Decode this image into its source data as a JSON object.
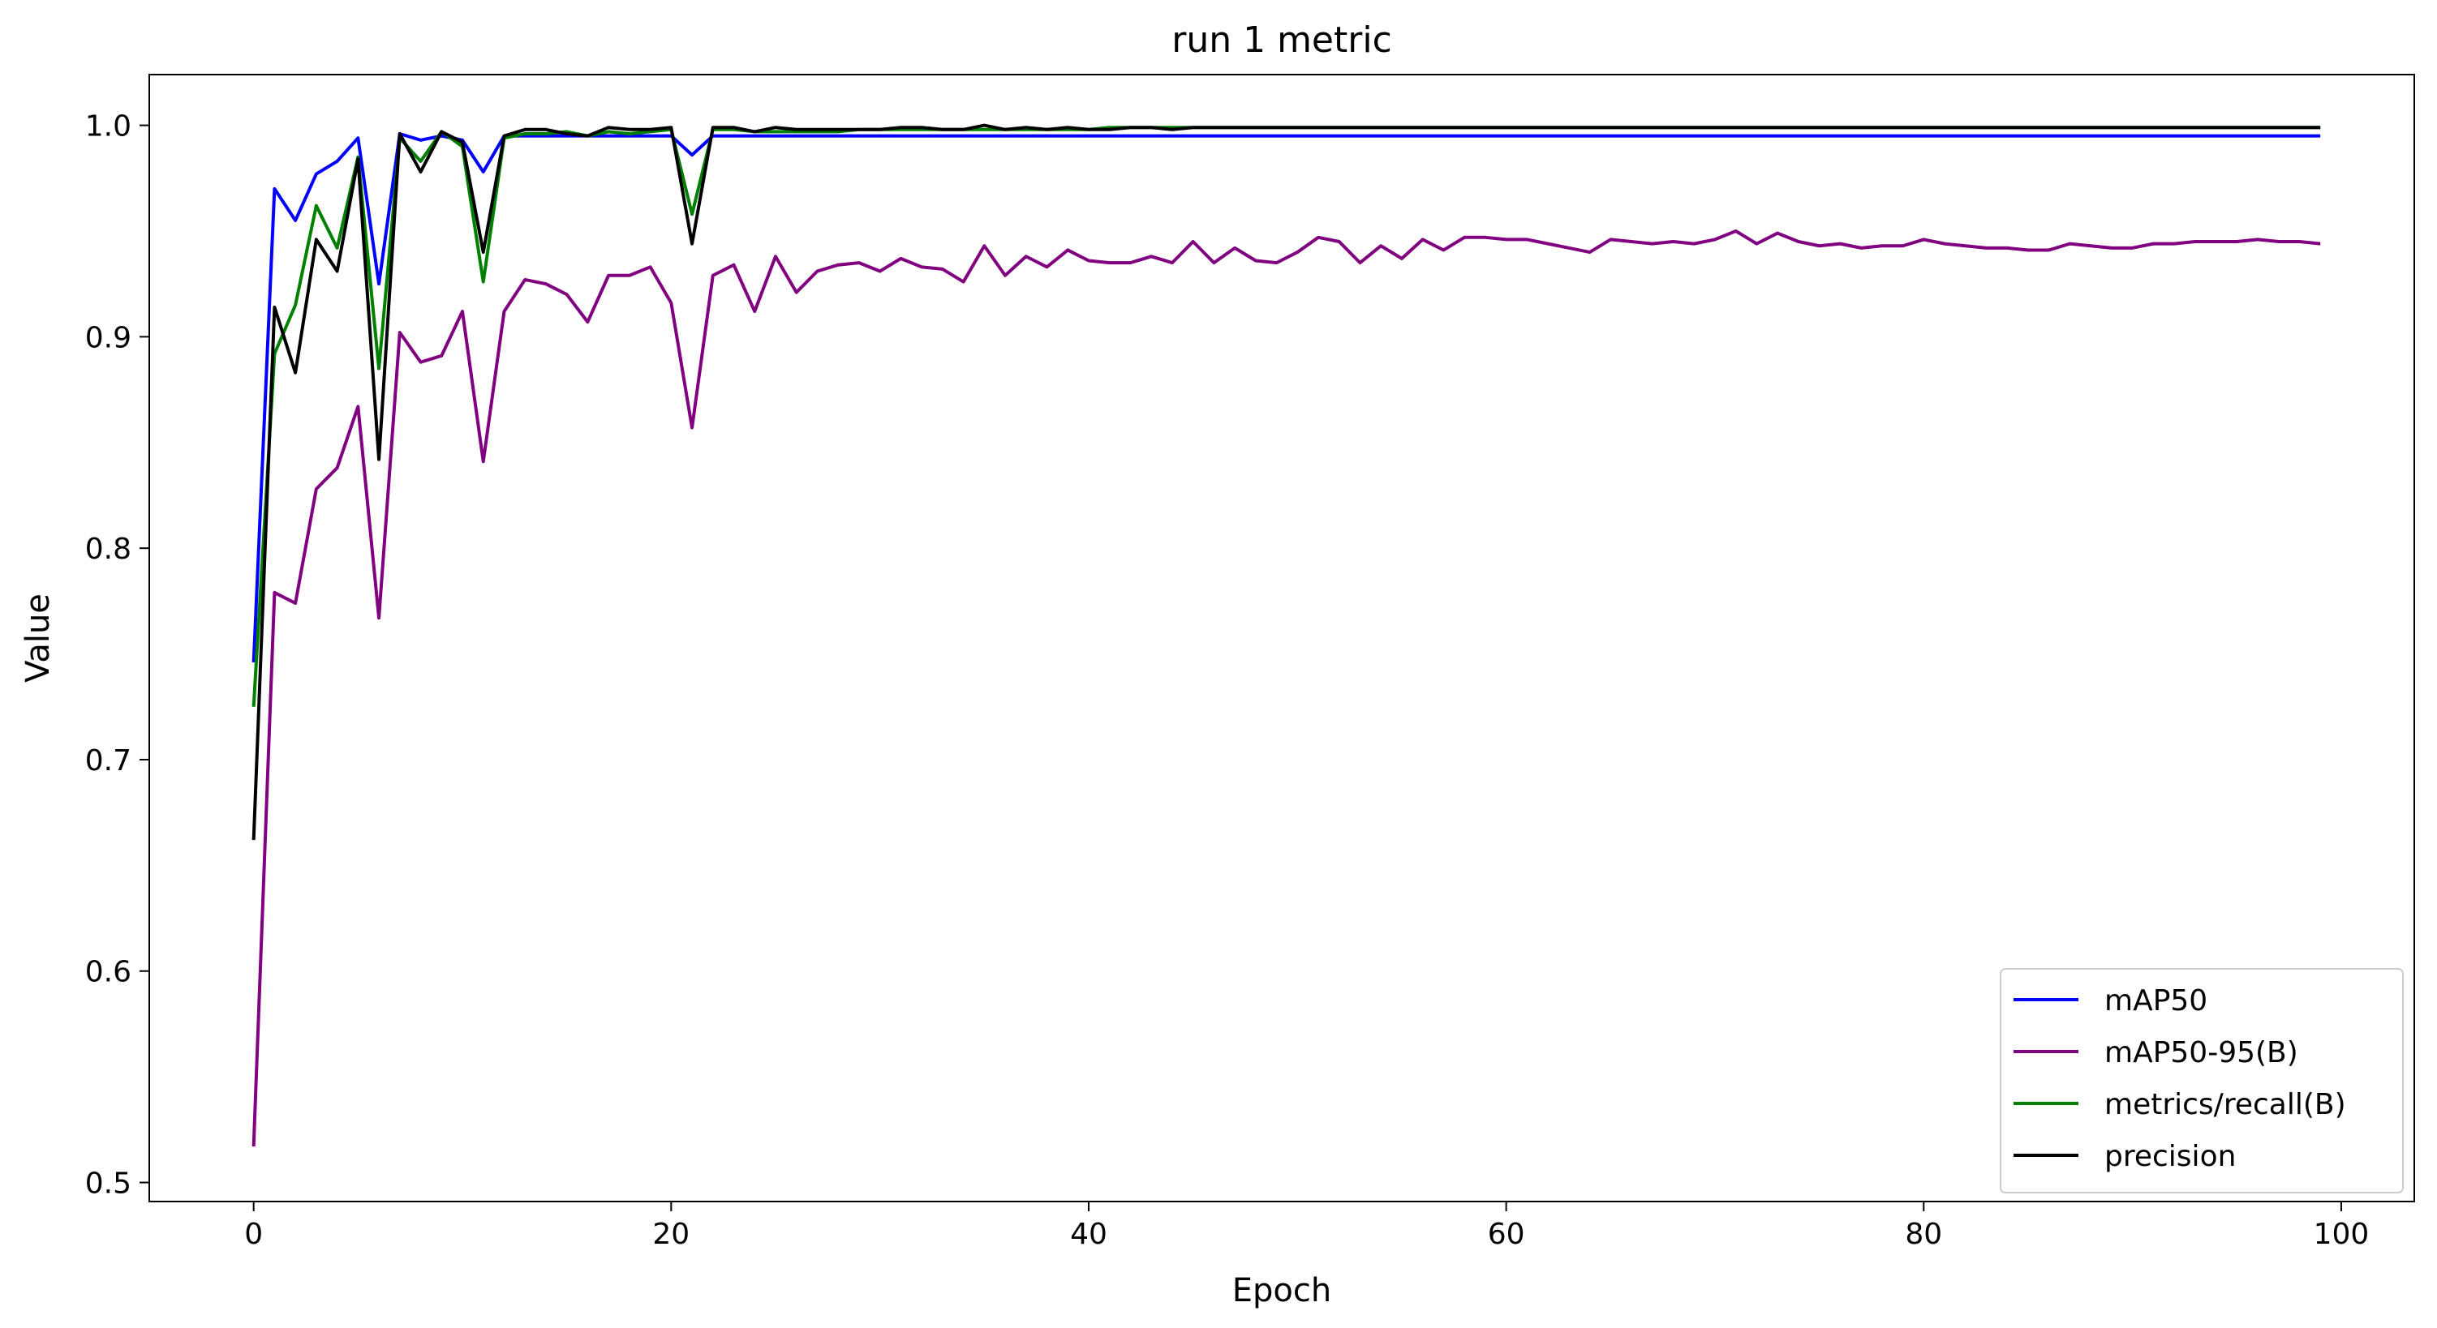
{
  "chart_data": {
    "type": "line",
    "title": "run 1 metric",
    "xlabel": "Epoch",
    "ylabel": "Value",
    "xlim": [
      -5,
      103.5
    ],
    "ylim": [
      0.491,
      1.024
    ],
    "xticks": [
      0,
      20,
      40,
      60,
      80,
      100
    ],
    "yticks": [
      0.5,
      0.6,
      0.7,
      0.8,
      0.9,
      1.0
    ],
    "xtick_labels": [
      "0",
      "20",
      "40",
      "60",
      "80",
      "100"
    ],
    "ytick_labels": [
      "0.5",
      "0.6",
      "0.7",
      "0.8",
      "0.9",
      "1.0"
    ],
    "grid": false,
    "legend_position": "lower-right",
    "series": [
      {
        "name": "mAP50",
        "color": "#0000ff",
        "values": [
          0.746,
          0.97,
          0.955,
          0.977,
          0.983,
          0.994,
          0.925,
          0.996,
          0.993,
          0.995,
          0.993,
          0.978,
          0.995,
          0.995,
          0.995,
          0.995,
          0.995,
          0.995,
          0.995,
          0.995,
          0.995,
          0.986,
          0.995,
          0.995,
          0.995,
          0.995,
          0.995,
          0.995,
          0.995,
          0.995,
          0.995,
          0.995,
          0.995,
          0.995,
          0.995,
          0.995,
          0.995,
          0.995,
          0.995,
          0.995,
          0.995,
          0.995,
          0.995,
          0.995,
          0.995,
          0.995,
          0.995,
          0.995,
          0.995,
          0.995,
          0.995,
          0.995,
          0.995,
          0.995,
          0.995,
          0.995,
          0.995,
          0.995,
          0.995,
          0.995,
          0.995,
          0.995,
          0.995,
          0.995,
          0.995,
          0.995,
          0.995,
          0.995,
          0.995,
          0.995,
          0.995,
          0.995,
          0.995,
          0.995,
          0.995,
          0.995,
          0.995,
          0.995,
          0.995,
          0.995,
          0.995,
          0.995,
          0.995,
          0.995,
          0.995,
          0.995,
          0.995,
          0.995,
          0.995,
          0.995,
          0.995,
          0.995,
          0.995,
          0.995,
          0.995,
          0.995,
          0.995,
          0.995,
          0.995,
          0.995
        ]
      },
      {
        "name": "mAP50-95(B)",
        "color": "#800080",
        "values": [
          0.517,
          0.779,
          0.774,
          0.828,
          0.838,
          0.867,
          0.767,
          0.902,
          0.888,
          0.891,
          0.912,
          0.841,
          0.912,
          0.927,
          0.925,
          0.92,
          0.907,
          0.929,
          0.929,
          0.933,
          0.916,
          0.857,
          0.929,
          0.934,
          0.912,
          0.938,
          0.921,
          0.931,
          0.934,
          0.935,
          0.931,
          0.937,
          0.933,
          0.932,
          0.926,
          0.943,
          0.929,
          0.938,
          0.933,
          0.941,
          0.936,
          0.935,
          0.935,
          0.938,
          0.935,
          0.945,
          0.935,
          0.942,
          0.936,
          0.935,
          0.94,
          0.947,
          0.945,
          0.935,
          0.943,
          0.937,
          0.946,
          0.941,
          0.947,
          0.947,
          0.946,
          0.946,
          0.944,
          0.942,
          0.94,
          0.946,
          0.945,
          0.944,
          0.945,
          0.944,
          0.946,
          0.95,
          0.944,
          0.949,
          0.945,
          0.943,
          0.944,
          0.942,
          0.943,
          0.943,
          0.946,
          0.944,
          0.943,
          0.942,
          0.942,
          0.941,
          0.941,
          0.944,
          0.943,
          0.942,
          0.942,
          0.944,
          0.944,
          0.945,
          0.945,
          0.945,
          0.946,
          0.945,
          0.945,
          0.944
        ]
      },
      {
        "name": "metrics/recall(B)",
        "color": "#008000",
        "values": [
          0.725,
          0.892,
          0.915,
          0.962,
          0.942,
          0.985,
          0.885,
          0.994,
          0.983,
          0.997,
          0.99,
          0.926,
          0.994,
          0.996,
          0.996,
          0.997,
          0.995,
          0.997,
          0.996,
          0.997,
          0.998,
          0.958,
          0.998,
          0.998,
          0.997,
          0.997,
          0.997,
          0.997,
          0.997,
          0.998,
          0.998,
          0.998,
          0.998,
          0.998,
          0.998,
          0.998,
          0.998,
          0.998,
          0.998,
          0.998,
          0.998,
          0.999,
          0.999,
          0.999,
          0.999,
          0.999,
          0.999,
          0.999,
          0.999,
          0.999,
          0.999,
          0.999,
          0.999,
          0.999,
          0.999,
          0.999,
          0.999,
          0.999,
          0.999,
          0.999,
          0.999,
          0.999,
          0.999,
          0.999,
          0.999,
          0.999,
          0.999,
          0.999,
          0.999,
          0.999,
          0.999,
          0.999,
          0.999,
          0.999,
          0.999,
          0.999,
          0.999,
          0.999,
          0.999,
          0.999,
          0.999,
          0.999,
          0.999,
          0.999,
          0.999,
          0.999,
          0.999,
          0.999,
          0.999,
          0.999,
          0.999,
          0.999,
          0.999,
          0.999,
          0.999,
          0.999,
          0.999,
          0.999,
          0.999,
          0.999
        ]
      },
      {
        "name": "precision",
        "color": "#000000",
        "values": [
          0.662,
          0.914,
          0.883,
          0.946,
          0.931,
          0.984,
          0.842,
          0.996,
          0.978,
          0.997,
          0.992,
          0.94,
          0.995,
          0.998,
          0.998,
          0.996,
          0.995,
          0.999,
          0.998,
          0.998,
          0.999,
          0.944,
          0.999,
          0.999,
          0.997,
          0.999,
          0.998,
          0.998,
          0.998,
          0.998,
          0.998,
          0.999,
          0.999,
          0.998,
          0.998,
          1.0,
          0.998,
          0.999,
          0.998,
          0.999,
          0.998,
          0.998,
          0.999,
          0.999,
          0.998,
          0.999,
          0.999,
          0.999,
          0.999,
          0.999,
          0.999,
          0.999,
          0.999,
          0.999,
          0.999,
          0.999,
          0.999,
          0.999,
          0.999,
          0.999,
          0.999,
          0.999,
          0.999,
          0.999,
          0.999,
          0.999,
          0.999,
          0.999,
          0.999,
          0.999,
          0.999,
          0.999,
          0.999,
          0.999,
          0.999,
          0.999,
          0.999,
          0.999,
          0.999,
          0.999,
          0.999,
          0.999,
          0.999,
          0.999,
          0.999,
          0.999,
          0.999,
          0.999,
          0.999,
          0.999,
          0.999,
          0.999,
          0.999,
          0.999,
          0.999,
          0.999,
          0.999,
          0.999,
          0.999,
          0.999
        ]
      }
    ]
  }
}
